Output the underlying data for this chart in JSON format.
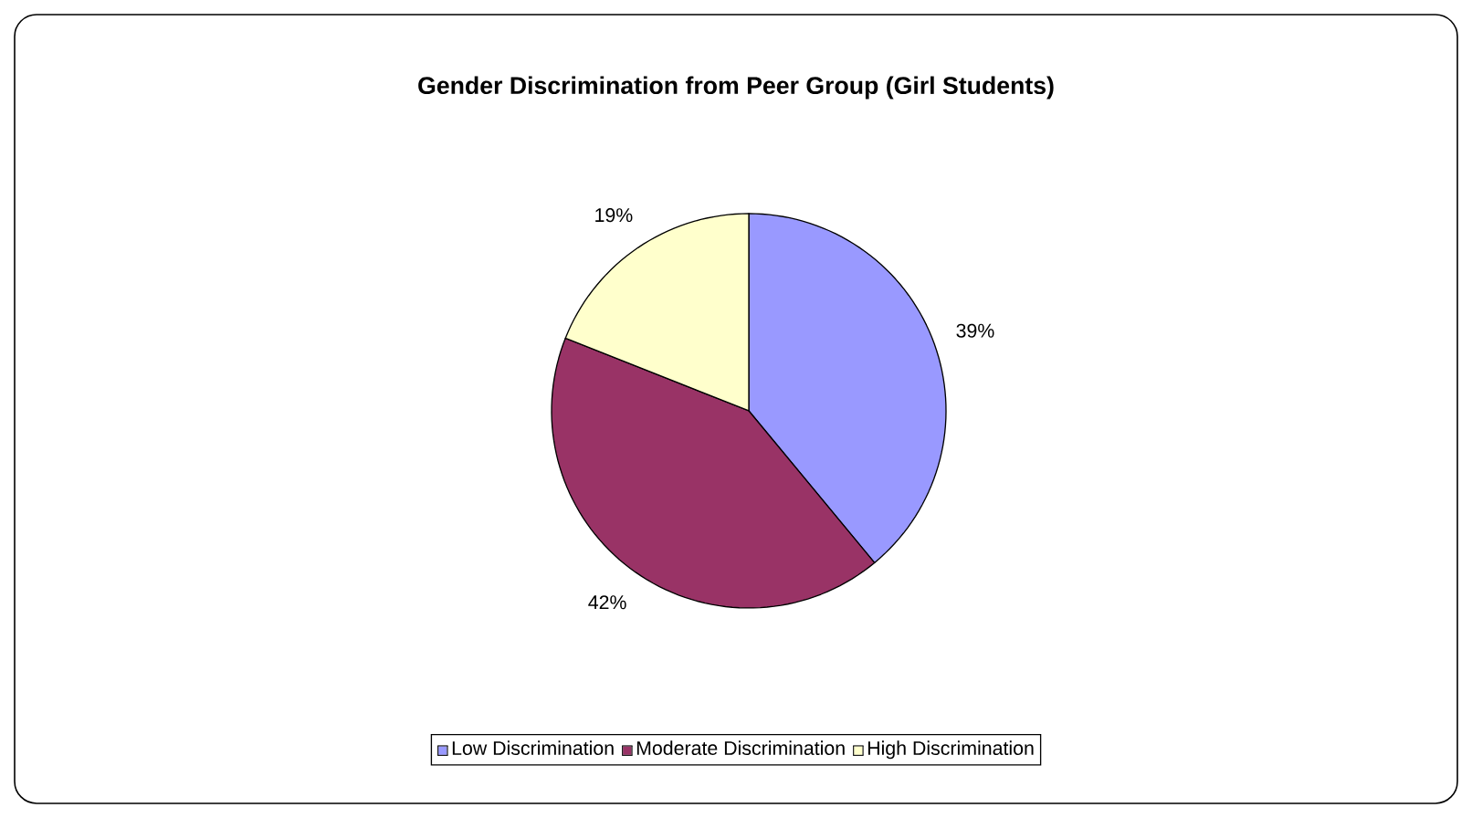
{
  "chart_data": {
    "type": "pie",
    "title": "Gender Discrimination from Peer Group (Girl Students)",
    "categories": [
      "Low Discrimination",
      "Moderate Discrimination",
      "High Discrimination"
    ],
    "values": [
      39,
      42,
      19
    ],
    "colors": [
      "#9999ff",
      "#993366",
      "#ffffcc"
    ],
    "value_labels": [
      "39%",
      "42%",
      "19%"
    ],
    "legend": "bottom"
  }
}
